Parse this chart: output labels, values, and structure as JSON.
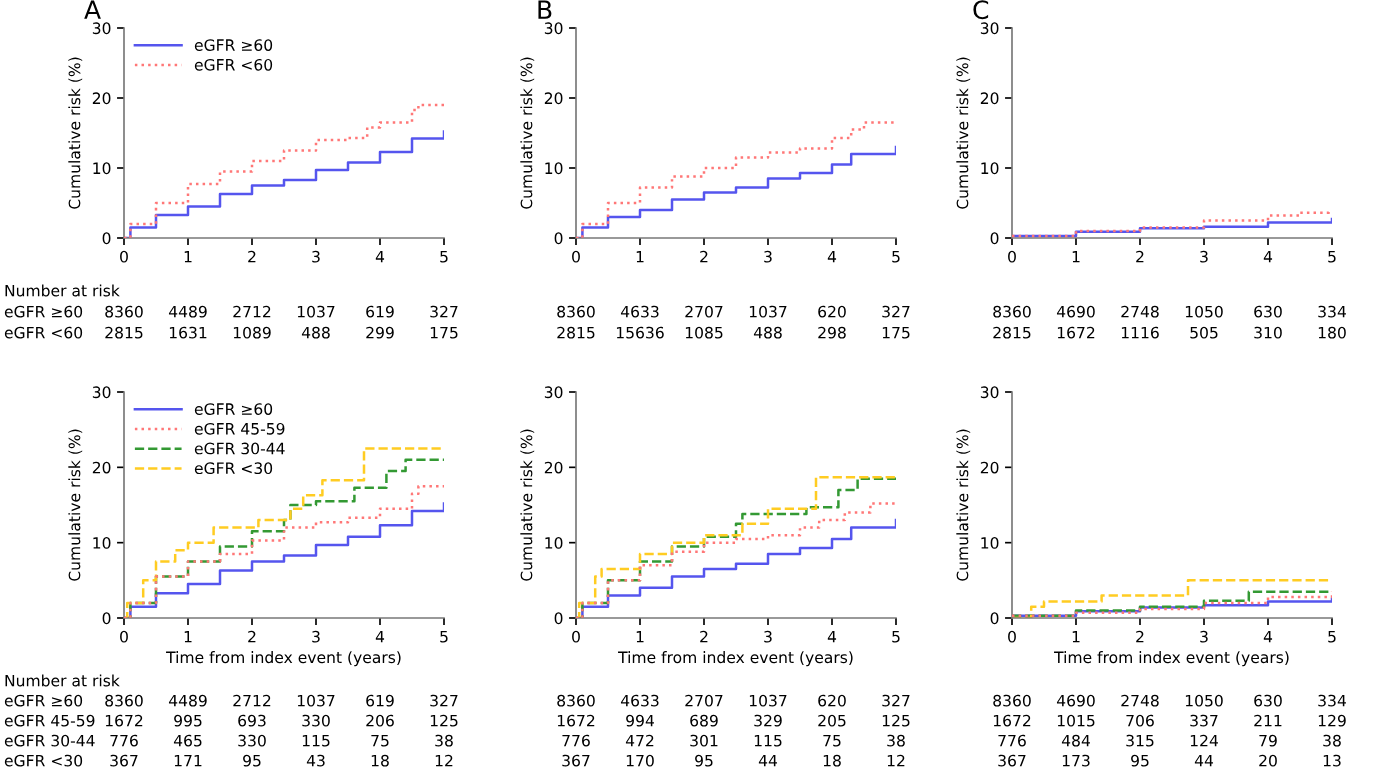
{
  "chart_data": [
    {
      "type": "step",
      "title": "A",
      "ylabel": "Cumulative risk (%)",
      "xlim": [
        0,
        5
      ],
      "ylim": [
        0,
        30
      ],
      "xticks": [
        0,
        1,
        2,
        3,
        4,
        5
      ],
      "yticks": [
        0,
        10,
        20,
        30
      ],
      "grid": false,
      "legend": "top left",
      "series": [
        {
          "name": "eGFR ≥60",
          "color": "#5555ee",
          "line_style": "solid",
          "x": [
            0,
            0.1,
            0.5,
            1,
            1.5,
            2,
            2.5,
            3,
            3.5,
            4,
            4.5,
            5
          ],
          "values": [
            0,
            1.5,
            3.3,
            4.5,
            6.3,
            7.5,
            8.3,
            9.7,
            10.8,
            12.3,
            14.2,
            15.2
          ]
        },
        {
          "name": "eGFR <60",
          "color": "#ff7777",
          "line_style": "dotted",
          "x": [
            0,
            0.1,
            0.5,
            1,
            1.5,
            2,
            2.5,
            3,
            3.5,
            3.8,
            4,
            4.5,
            4.6,
            5
          ],
          "values": [
            0,
            2,
            5,
            7.7,
            9.5,
            11,
            12.5,
            14,
            14.3,
            15.8,
            16.5,
            18.3,
            19,
            19
          ]
        }
      ],
      "annotations": [
        "Number at risk",
        "eGFR ≥60",
        "8360",
        "4489",
        "2712",
        "1037",
        "619",
        "327",
        "eGFR <60",
        "2815",
        "1631",
        "1089",
        "488",
        "299",
        "175"
      ]
    },
    {
      "type": "step",
      "title": "B",
      "ylabel": "Cumulative risk (%)",
      "xlim": [
        0,
        5
      ],
      "ylim": [
        0,
        30
      ],
      "xticks": [
        0,
        1,
        2,
        3,
        4,
        5
      ],
      "yticks": [
        0,
        10,
        20,
        30
      ],
      "grid": false,
      "series": [
        {
          "color": "#5555ee",
          "line_style": "solid",
          "x": [
            0,
            0.1,
            0.5,
            1,
            1.5,
            2,
            2.5,
            3,
            3.5,
            4,
            4.3,
            5
          ],
          "values": [
            0,
            1.5,
            3,
            4,
            5.5,
            6.5,
            7.2,
            8.5,
            9.3,
            10.5,
            12,
            13
          ]
        },
        {
          "color": "#ff7777",
          "line_style": "dotted",
          "x": [
            0,
            0.1,
            0.5,
            1,
            1.5,
            2,
            2.5,
            3,
            3.5,
            4,
            4.3,
            4.5,
            5
          ],
          "values": [
            0,
            2,
            5,
            7.2,
            8.8,
            10,
            11.5,
            12.2,
            12.8,
            14.3,
            15.5,
            16.5,
            16.5
          ]
        }
      ],
      "annotations": [
        "8360",
        "4633",
        "2707",
        "1037",
        "620",
        "327",
        "2815",
        "15636",
        "1085",
        "488",
        "298",
        "175"
      ]
    },
    {
      "type": "step",
      "title": "C",
      "ylabel": "Cumulative risk (%)",
      "xlim": [
        0,
        5
      ],
      "ylim": [
        0,
        30
      ],
      "xticks": [
        0,
        1,
        2,
        3,
        4,
        5
      ],
      "yticks": [
        0,
        10,
        20,
        30
      ],
      "grid": false,
      "series": [
        {
          "color": "#5555ee",
          "line_style": "solid",
          "x": [
            0,
            1,
            2,
            3,
            4,
            5
          ],
          "values": [
            0.3,
            0.9,
            1.4,
            1.6,
            2.2,
            2.7
          ]
        },
        {
          "color": "#ff7777",
          "line_style": "dotted",
          "x": [
            0,
            1,
            2,
            3,
            4,
            4.5,
            4.95
          ],
          "values": [
            0.3,
            1,
            1.5,
            2.5,
            3.2,
            3.6,
            4.2
          ]
        }
      ],
      "annotations": [
        "8360",
        "4690",
        "2748",
        "1050",
        "630",
        "334",
        "2815",
        "1672",
        "1116",
        "505",
        "310",
        "180"
      ]
    },
    {
      "type": "step",
      "xlabel": "Time from index event (years)",
      "ylabel": "Cumulative risk (%)",
      "xlim": [
        0,
        5
      ],
      "ylim": [
        0,
        30
      ],
      "xticks": [
        0,
        1,
        2,
        3,
        4,
        5
      ],
      "yticks": [
        0,
        10,
        20,
        30
      ],
      "grid": false,
      "legend": "top left",
      "series": [
        {
          "name": "eGFR ≥60",
          "color": "#5555ee",
          "line_style": "solid",
          "x": [
            0,
            0.1,
            0.5,
            1,
            1.5,
            2,
            2.5,
            3,
            3.5,
            4,
            4.5,
            5
          ],
          "values": [
            0,
            1.5,
            3.3,
            4.5,
            6.3,
            7.5,
            8.3,
            9.7,
            10.8,
            12.3,
            14.2,
            15.2
          ]
        },
        {
          "name": "eGFR 45-59",
          "color": "#ff7777",
          "line_style": "dotted",
          "x": [
            0,
            0.1,
            0.5,
            1,
            1.5,
            2,
            2.5,
            3,
            3.5,
            4,
            4.5,
            4.6,
            5
          ],
          "values": [
            0,
            2,
            5.5,
            7.5,
            8.5,
            10.3,
            12,
            12.7,
            13.3,
            14.5,
            16.5,
            17.5,
            17.5
          ]
        },
        {
          "name": "eGFR 30-44",
          "color": "#339933",
          "line_style": "dashed",
          "x": [
            0,
            0.1,
            0.5,
            1,
            1.5,
            2,
            2.5,
            2.6,
            3,
            3.6,
            4.1,
            4.4,
            5
          ],
          "values": [
            0,
            2,
            5.5,
            7.5,
            9.5,
            11.5,
            13,
            15,
            15.5,
            17.3,
            19.5,
            21,
            21
          ]
        },
        {
          "name": "eGFR <30",
          "color": "#ffcc22",
          "line_style": "dashed",
          "x": [
            0,
            0.05,
            0.3,
            0.5,
            0.8,
            1,
            1.4,
            2,
            2.1,
            2.6,
            2.8,
            3.1,
            3.75,
            5
          ],
          "values": [
            0,
            2,
            5,
            7.5,
            9,
            10,
            12,
            12,
            13,
            14.5,
            16.3,
            18.3,
            22.5,
            22.5
          ]
        }
      ],
      "annotations": [
        "Number at risk",
        "eGFR ≥60",
        "8360",
        "4489",
        "2712",
        "1037",
        "619",
        "327",
        "eGFR 45-59",
        "1672",
        "995",
        "693",
        "330",
        "206",
        "125",
        "eGFR 30-44",
        "776",
        "465",
        "330",
        "115",
        "75",
        "38",
        "eGFR <30",
        "367",
        "171",
        "95",
        "43",
        "18",
        "12"
      ]
    },
    {
      "type": "step",
      "xlabel": "Time from index event (years)",
      "ylabel": "Cumulative risk (%)",
      "xlim": [
        0,
        5
      ],
      "ylim": [
        0,
        30
      ],
      "xticks": [
        0,
        1,
        2,
        3,
        4,
        5
      ],
      "yticks": [
        0,
        10,
        20,
        30
      ],
      "grid": false,
      "series": [
        {
          "color": "#5555ee",
          "line_style": "solid",
          "x": [
            0,
            0.1,
            0.5,
            1,
            1.5,
            2,
            2.5,
            3,
            3.5,
            4,
            4.3,
            5
          ],
          "values": [
            0,
            1.5,
            3,
            4,
            5.5,
            6.5,
            7.2,
            8.5,
            9.3,
            10.5,
            12,
            13
          ]
        },
        {
          "color": "#ff7777",
          "line_style": "dotted",
          "x": [
            0,
            0.1,
            0.5,
            1,
            1.5,
            2,
            2.5,
            3,
            3.5,
            3.8,
            4.2,
            4.6,
            5
          ],
          "values": [
            0,
            2,
            5,
            7,
            8.8,
            10,
            10.5,
            11,
            12,
            13,
            14,
            15.2,
            15.2
          ]
        },
        {
          "color": "#339933",
          "line_style": "dashed",
          "x": [
            0,
            0.1,
            0.5,
            1,
            1.5,
            2,
            2.5,
            2.6,
            3,
            3.6,
            4.1,
            4.4,
            5
          ],
          "values": [
            0,
            2,
            5,
            7.5,
            9.5,
            10.8,
            12.5,
            13.8,
            13.8,
            14.7,
            17,
            18.5,
            18.5
          ]
        },
        {
          "color": "#ffcc22",
          "line_style": "dashed",
          "x": [
            0,
            0.05,
            0.3,
            0.4,
            1,
            1.5,
            2,
            2.5,
            2.6,
            3,
            3.7,
            3.75,
            5
          ],
          "values": [
            0,
            2,
            5.5,
            6.5,
            8.5,
            10,
            11,
            11,
            12.5,
            14.5,
            14.5,
            18.7,
            18.7
          ]
        }
      ],
      "annotations": [
        "8360",
        "4633",
        "2707",
        "1037",
        "620",
        "327",
        "1672",
        "994",
        "689",
        "329",
        "205",
        "125",
        "776",
        "472",
        "301",
        "115",
        "75",
        "38",
        "367",
        "170",
        "95",
        "44",
        "18",
        "12"
      ]
    },
    {
      "type": "step",
      "xlabel": "Time from index event (years)",
      "ylabel": "Cumulative risk (%)",
      "xlim": [
        0,
        5
      ],
      "ylim": [
        0,
        30
      ],
      "xticks": [
        0,
        1,
        2,
        3,
        4,
        5
      ],
      "yticks": [
        0,
        10,
        20,
        30
      ],
      "grid": false,
      "series": [
        {
          "color": "#5555ee",
          "line_style": "solid",
          "x": [
            0,
            1,
            2,
            3,
            4,
            5
          ],
          "values": [
            0.3,
            0.9,
            1.4,
            1.7,
            2.2,
            2.6
          ]
        },
        {
          "color": "#ff7777",
          "line_style": "dotted",
          "x": [
            0,
            1,
            2,
            3,
            4,
            5
          ],
          "values": [
            0.3,
            0.7,
            1.2,
            2,
            2.8,
            3.6
          ]
        },
        {
          "color": "#339933",
          "line_style": "dashed",
          "x": [
            0,
            1,
            2,
            3,
            3.7,
            5
          ],
          "values": [
            0.3,
            1,
            1.5,
            2.3,
            3.5,
            3.5
          ]
        },
        {
          "color": "#ffcc22",
          "line_style": "dashed",
          "x": [
            0,
            0.3,
            0.5,
            1.4,
            2.7,
            2.75,
            5
          ],
          "values": [
            0,
            1.5,
            2.2,
            3,
            3,
            5,
            5
          ]
        }
      ],
      "annotations": [
        "8360",
        "4690",
        "2748",
        "1050",
        "630",
        "334",
        "1672",
        "1015",
        "706",
        "337",
        "211",
        "129",
        "776",
        "484",
        "315",
        "124",
        "79",
        "38",
        "367",
        "173",
        "95",
        "44",
        "20",
        "13"
      ]
    }
  ]
}
